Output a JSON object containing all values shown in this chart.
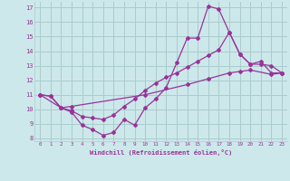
{
  "xlabel": "Windchill (Refroidissement éolien,°C)",
  "bg_color": "#cce8ea",
  "grid_color": "#aacccc",
  "line_color": "#993399",
  "xlim": [
    -0.5,
    23.5
  ],
  "ylim": [
    7.8,
    17.4
  ],
  "xticks": [
    0,
    1,
    2,
    3,
    4,
    5,
    6,
    7,
    8,
    9,
    10,
    11,
    12,
    13,
    14,
    15,
    16,
    17,
    18,
    19,
    20,
    21,
    22,
    23
  ],
  "yticks": [
    8,
    9,
    10,
    11,
    12,
    13,
    14,
    15,
    16,
    17
  ],
  "series1_x": [
    0,
    1,
    2,
    3,
    4,
    5,
    6,
    7,
    8,
    9,
    10,
    11,
    12,
    13,
    14,
    15,
    16,
    17,
    18,
    19,
    20,
    21,
    22,
    23
  ],
  "series1_y": [
    11.0,
    10.9,
    10.1,
    9.8,
    8.9,
    8.6,
    8.2,
    8.4,
    9.3,
    8.9,
    10.1,
    10.7,
    11.5,
    13.2,
    14.9,
    14.9,
    17.1,
    16.9,
    15.3,
    13.8,
    13.1,
    13.3,
    12.5,
    12.5
  ],
  "series2_x": [
    0,
    1,
    2,
    3,
    4,
    5,
    6,
    7,
    8,
    9,
    10,
    11,
    12,
    13,
    14,
    15,
    16,
    17,
    18,
    19,
    20,
    21,
    22,
    23
  ],
  "series2_y": [
    11.0,
    10.9,
    10.1,
    9.9,
    9.5,
    9.4,
    9.3,
    9.6,
    10.2,
    10.7,
    11.3,
    11.8,
    12.2,
    12.5,
    12.9,
    13.3,
    13.7,
    14.1,
    15.3,
    13.8,
    13.1,
    13.1,
    13.0,
    12.5
  ],
  "series3_x": [
    0,
    2,
    3,
    10,
    14,
    16,
    18,
    19,
    20,
    22,
    23
  ],
  "series3_y": [
    11.0,
    10.1,
    10.2,
    11.0,
    11.7,
    12.1,
    12.5,
    12.6,
    12.7,
    12.4,
    12.5
  ]
}
